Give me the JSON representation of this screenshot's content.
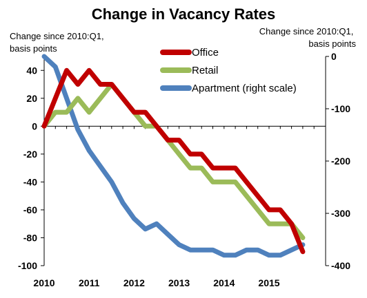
{
  "chart_data": {
    "type": "line",
    "title": "Change in Vacancy Rates",
    "left_axis_label": "Change since 2010:Q1,\nbasis points",
    "right_axis_label": "Change since 2010:Q1,\nbasis points",
    "left_ylim": [
      -100,
      50
    ],
    "left_ticks": [
      40,
      20,
      0,
      -20,
      -40,
      -60,
      -80,
      -100
    ],
    "right_ylim": [
      -400,
      0
    ],
    "right_ticks": [
      0,
      -100,
      -200,
      -300,
      -400
    ],
    "x_ticks": [
      "2010",
      "2011",
      "2012",
      "2013",
      "2014",
      "2015"
    ],
    "x_quarters": [
      "2010:Q1",
      "2010:Q2",
      "2010:Q3",
      "2010:Q4",
      "2011:Q1",
      "2011:Q2",
      "2011:Q3",
      "2011:Q4",
      "2012:Q1",
      "2012:Q2",
      "2012:Q3",
      "2012:Q4",
      "2013:Q1",
      "2013:Q2",
      "2013:Q3",
      "2013:Q4",
      "2014:Q1",
      "2014:Q2",
      "2014:Q3",
      "2014:Q4",
      "2015:Q1",
      "2015:Q2",
      "2015:Q3",
      "2015:Q4"
    ],
    "legend_placement": "top-center",
    "series": [
      {
        "name": "Office",
        "axis": "left",
        "color": "#c00000",
        "values": [
          0,
          20,
          40,
          30,
          40,
          30,
          30,
          20,
          10,
          10,
          0,
          -10,
          -10,
          -20,
          -20,
          -30,
          -30,
          -30,
          -40,
          -50,
          -60,
          -60,
          -70,
          -90
        ]
      },
      {
        "name": "Retail",
        "axis": "left",
        "color": "#9bbb59",
        "values": [
          0,
          10,
          10,
          20,
          10,
          20,
          30,
          20,
          10,
          0,
          0,
          -10,
          -20,
          -30,
          -30,
          -40,
          -40,
          -40,
          -50,
          -60,
          -70,
          -70,
          -70,
          -80
        ]
      },
      {
        "name": "Apartment (right scale)",
        "axis": "right",
        "color": "#4f81bd",
        "values": [
          0,
          -20,
          -80,
          -140,
          -180,
          -210,
          -240,
          -280,
          -310,
          -330,
          -320,
          -340,
          -360,
          -370,
          -370,
          -370,
          -380,
          -380,
          -370,
          -370,
          -380,
          -380,
          -370,
          -360
        ]
      }
    ]
  }
}
